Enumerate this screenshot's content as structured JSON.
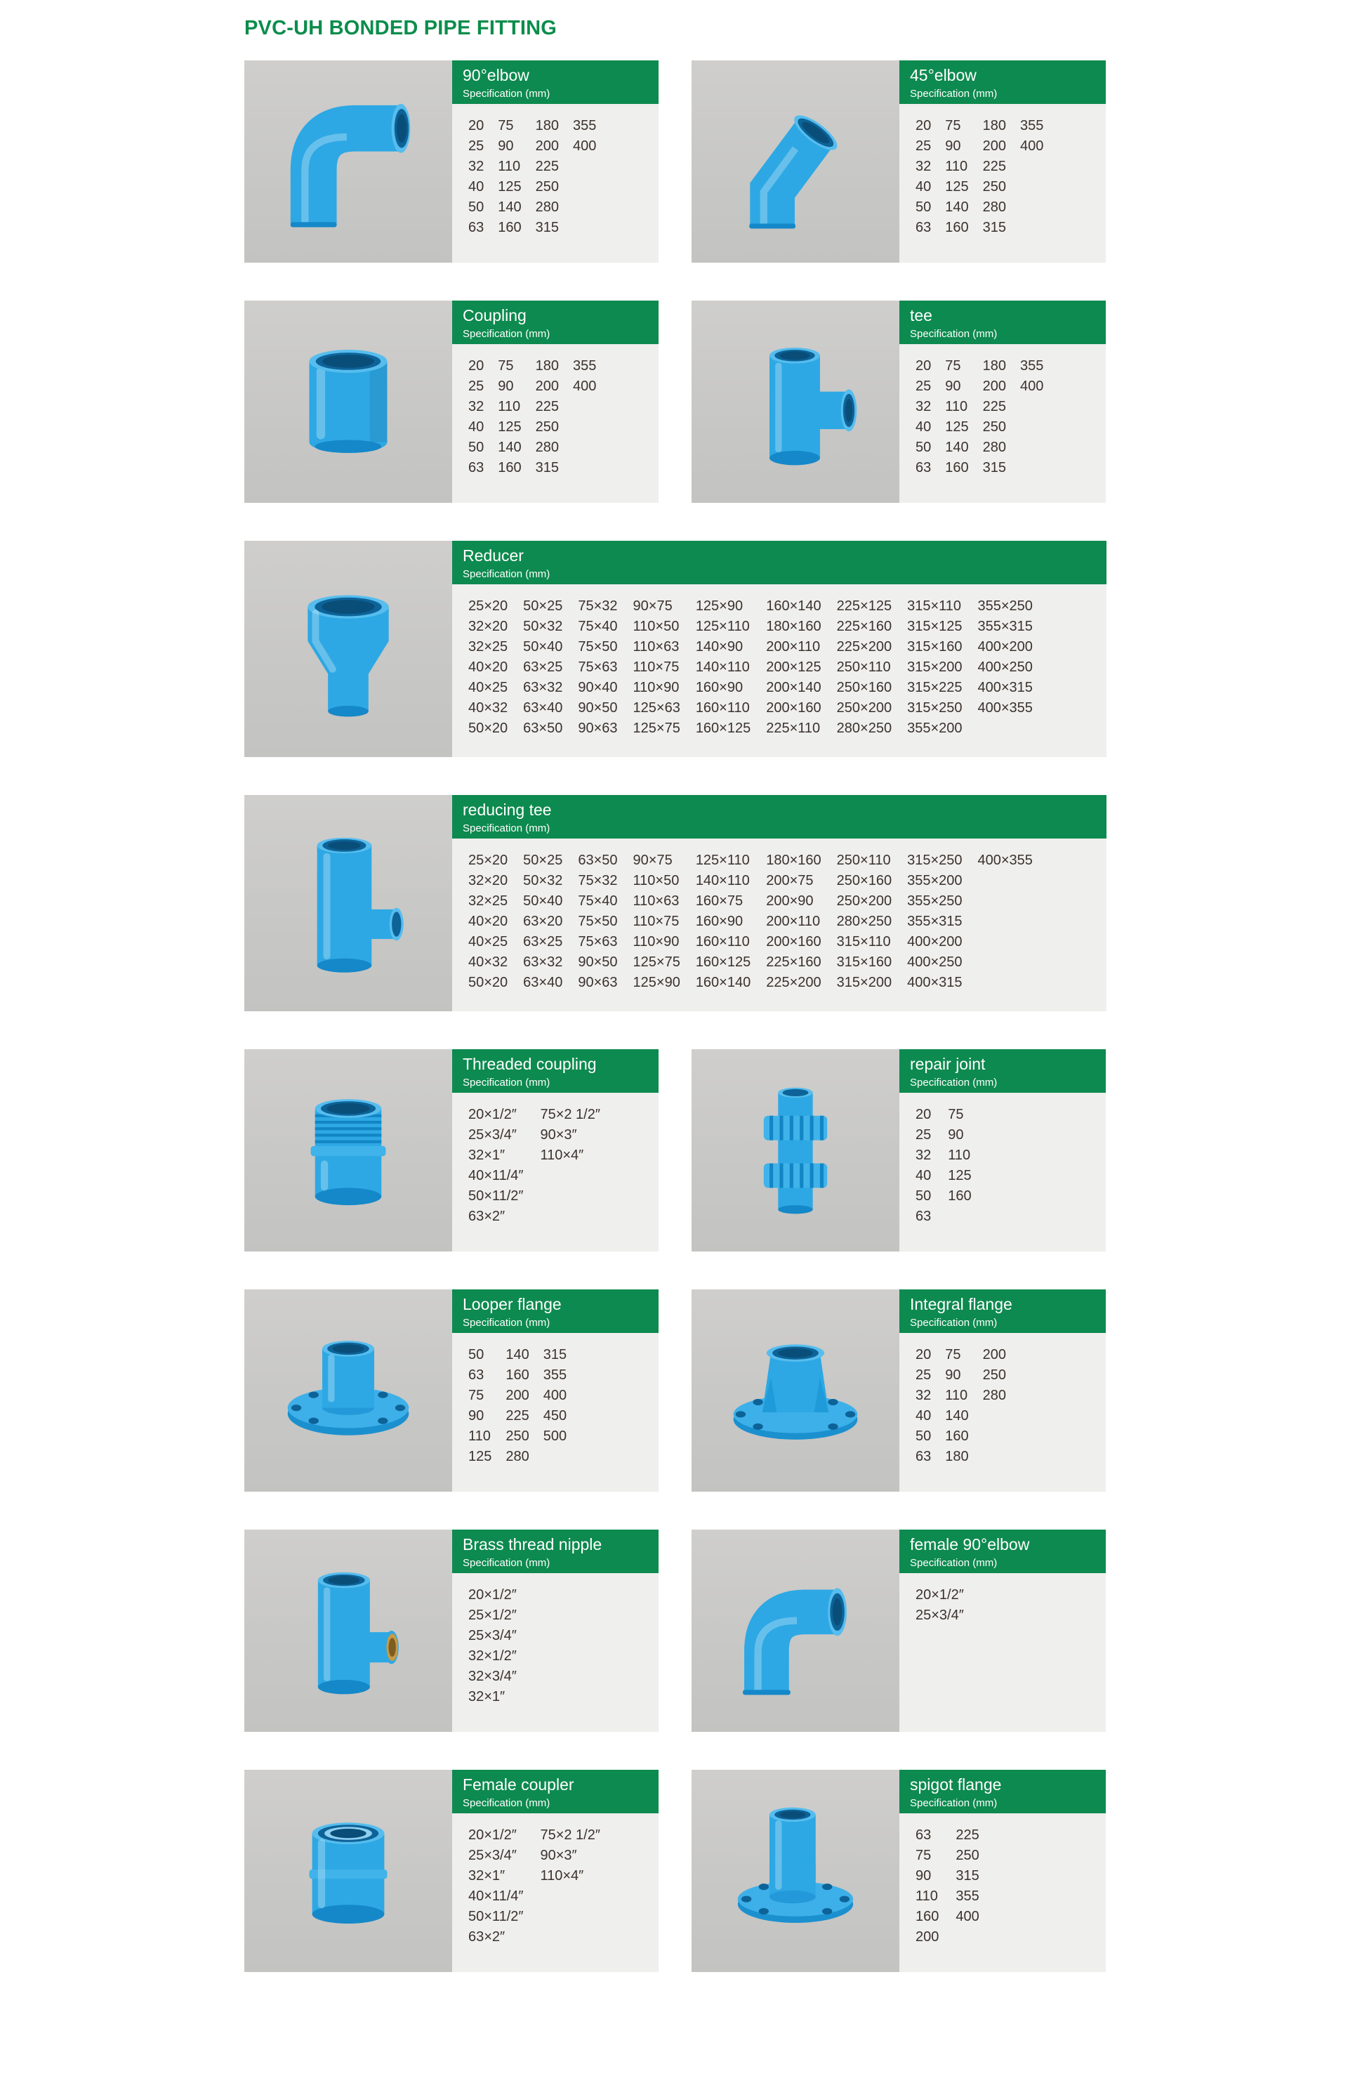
{
  "page": {
    "title": "PVC-UH BONDED PIPE FITTING"
  },
  "colors": {
    "title_green": "#0b8d4b",
    "header_green": "#0d8a4f",
    "spec_background": "#efefed",
    "spec_text": "#3b322d",
    "image_background": "#c9c9c7",
    "fitting_blue": "#2da8e4"
  },
  "cards": [
    {
      "title": "90°elbow",
      "subtitle": "Specification (mm)",
      "layout": "half",
      "image": "elbow-90",
      "cols": 4,
      "rows": [
        [
          "20",
          "75",
          "180",
          "355"
        ],
        [
          "25",
          "90",
          "200",
          "400"
        ],
        [
          "32",
          "110",
          "225"
        ],
        [
          "40",
          "125",
          "250"
        ],
        [
          "50",
          "140",
          "280"
        ],
        [
          "63",
          "160",
          "315"
        ]
      ]
    },
    {
      "title": "45°elbow",
      "subtitle": "Specification (mm)",
      "layout": "half",
      "image": "elbow-45",
      "cols": 4,
      "rows": [
        [
          "20",
          "75",
          "180",
          "355"
        ],
        [
          "25",
          "90",
          "200",
          "400"
        ],
        [
          "32",
          "110",
          "225"
        ],
        [
          "40",
          "125",
          "250"
        ],
        [
          "50",
          "140",
          "280"
        ],
        [
          "63",
          "160",
          "315"
        ]
      ]
    },
    {
      "title": "Coupling",
      "subtitle": "Specification (mm)",
      "layout": "half",
      "image": "coupling",
      "cols": 4,
      "rows": [
        [
          "20",
          "75",
          "180",
          "355"
        ],
        [
          "25",
          "90",
          "200",
          "400"
        ],
        [
          "32",
          "110",
          "225"
        ],
        [
          "40",
          "125",
          "250"
        ],
        [
          "50",
          "140",
          "280"
        ],
        [
          "63",
          "160",
          "315"
        ]
      ]
    },
    {
      "title": "tee",
      "subtitle": "Specification (mm)",
      "layout": "half",
      "image": "tee",
      "cols": 4,
      "rows": [
        [
          "20",
          "75",
          "180",
          "355"
        ],
        [
          "25",
          "90",
          "200",
          "400"
        ],
        [
          "32",
          "110",
          "225"
        ],
        [
          "40",
          "125",
          "250"
        ],
        [
          "50",
          "140",
          "280"
        ],
        [
          "63",
          "160",
          "315"
        ]
      ]
    },
    {
      "title": "Reducer",
      "subtitle": "Specification (mm)",
      "layout": "full",
      "image": "reducer",
      "cols": 9,
      "rows": [
        [
          "25×20",
          "50×25",
          "75×32",
          "90×75",
          "125×90",
          "160×140",
          "225×125",
          "315×110",
          "355×250"
        ],
        [
          "32×20",
          "50×32",
          "75×40",
          "110×50",
          "125×110",
          "180×160",
          "225×160",
          "315×125",
          "355×315"
        ],
        [
          "32×25",
          "50×40",
          "75×50",
          "110×63",
          "140×90",
          "200×110",
          "225×200",
          "315×160",
          "400×200"
        ],
        [
          "40×20",
          "63×25",
          "75×63",
          "110×75",
          "140×110",
          "200×125",
          "250×110",
          "315×200",
          "400×250"
        ],
        [
          "40×25",
          "63×32",
          "90×40",
          "110×90",
          "160×90",
          "200×140",
          "250×160",
          "315×225",
          "400×315"
        ],
        [
          "40×32",
          "63×40",
          "90×50",
          "125×63",
          "160×110",
          "200×160",
          "250×200",
          "315×250",
          "400×355"
        ],
        [
          "50×20",
          "63×50",
          "90×63",
          "125×75",
          "160×125",
          "225×110",
          "280×250",
          "355×200"
        ]
      ]
    },
    {
      "title": "reducing tee",
      "subtitle": "Specification (mm)",
      "layout": "full",
      "image": "reducing-tee",
      "cols": 9,
      "rows": [
        [
          "25×20",
          "50×25",
          "63×50",
          "90×75",
          "125×110",
          "180×160",
          "250×110",
          "315×250",
          "400×355"
        ],
        [
          "32×20",
          "50×32",
          "75×32",
          "110×50",
          "140×110",
          "200×75",
          "250×160",
          "355×200"
        ],
        [
          "32×25",
          "50×40",
          "75×40",
          "110×63",
          "160×75",
          "200×90",
          "250×200",
          "355×250"
        ],
        [
          "40×20",
          "63×20",
          "75×50",
          "110×75",
          "160×90",
          "200×110",
          "280×250",
          "355×315"
        ],
        [
          "40×25",
          "63×25",
          "75×63",
          "110×90",
          "160×110",
          "200×160",
          "315×110",
          "400×200"
        ],
        [
          "40×32",
          "63×32",
          "90×50",
          "125×75",
          "160×125",
          "225×160",
          "315×160",
          "400×250"
        ],
        [
          "50×20",
          "63×40",
          "90×63",
          "125×90",
          "160×140",
          "225×200",
          "315×200",
          "400×315"
        ]
      ]
    },
    {
      "title": "Threaded coupling",
      "subtitle": "Specification (mm)",
      "layout": "half",
      "image": "threaded-coupling",
      "cols": 2,
      "rows": [
        [
          "20×1/2″",
          "75×2 1/2″"
        ],
        [
          "25×3/4″",
          "90×3″"
        ],
        [
          "32×1″",
          "110×4″"
        ],
        [
          "40×11/4″"
        ],
        [
          "50×11/2″"
        ],
        [
          "63×2″"
        ]
      ]
    },
    {
      "title": "repair joint",
      "subtitle": "Specification (mm)",
      "layout": "half",
      "image": "repair-joint",
      "cols": 2,
      "rows": [
        [
          "20",
          "75"
        ],
        [
          "25",
          "90"
        ],
        [
          "32",
          "110"
        ],
        [
          "40",
          "125"
        ],
        [
          "50",
          "160"
        ],
        [
          "63"
        ]
      ]
    },
    {
      "title": "Looper flange",
      "subtitle": "Specification (mm)",
      "layout": "half",
      "image": "looper-flange",
      "cols": 3,
      "rows": [
        [
          "50",
          "140",
          "315"
        ],
        [
          "63",
          "160",
          "355"
        ],
        [
          "75",
          "200",
          "400"
        ],
        [
          "90",
          "225",
          "450"
        ],
        [
          "110",
          "250",
          "500"
        ],
        [
          "125",
          "280"
        ]
      ]
    },
    {
      "title": "Integral flange",
      "subtitle": "Specification (mm)",
      "layout": "half",
      "image": "integral-flange",
      "cols": 3,
      "rows": [
        [
          "20",
          "75",
          "200"
        ],
        [
          "25",
          "90",
          "250"
        ],
        [
          "32",
          "110",
          "280"
        ],
        [
          "40",
          "140"
        ],
        [
          "50",
          "160"
        ],
        [
          "63",
          "180"
        ]
      ]
    },
    {
      "title": "Brass thread nipple",
      "subtitle": "Specification (mm)",
      "layout": "half",
      "image": "brass-nipple",
      "cols": 1,
      "rows": [
        [
          "20×1/2″"
        ],
        [
          "25×1/2″"
        ],
        [
          "25×3/4″"
        ],
        [
          "32×1/2″"
        ],
        [
          "32×3/4″"
        ],
        [
          "32×1″"
        ]
      ]
    },
    {
      "title": "female 90°elbow",
      "subtitle": "Specification (mm)",
      "layout": "half",
      "image": "female-elbow",
      "cols": 1,
      "rows": [
        [
          "20×1/2″"
        ],
        [
          "25×3/4″"
        ]
      ]
    },
    {
      "title": "Female coupler",
      "subtitle": "Specification (mm)",
      "layout": "half",
      "image": "female-coupler",
      "cols": 2,
      "rows": [
        [
          "20×1/2″",
          "75×2 1/2″"
        ],
        [
          "25×3/4″",
          "90×3″"
        ],
        [
          "32×1″",
          "110×4″"
        ],
        [
          "40×11/4″"
        ],
        [
          "50×11/2″"
        ],
        [
          "63×2″"
        ]
      ]
    },
    {
      "title": "spigot flange",
      "subtitle": "Specification (mm)",
      "layout": "half",
      "image": "spigot-flange",
      "cols": 2,
      "rows": [
        [
          "63",
          "225"
        ],
        [
          "75",
          "250"
        ],
        [
          "90",
          "315"
        ],
        [
          "110",
          "355"
        ],
        [
          "160",
          "400"
        ],
        [
          "200"
        ]
      ]
    }
  ]
}
